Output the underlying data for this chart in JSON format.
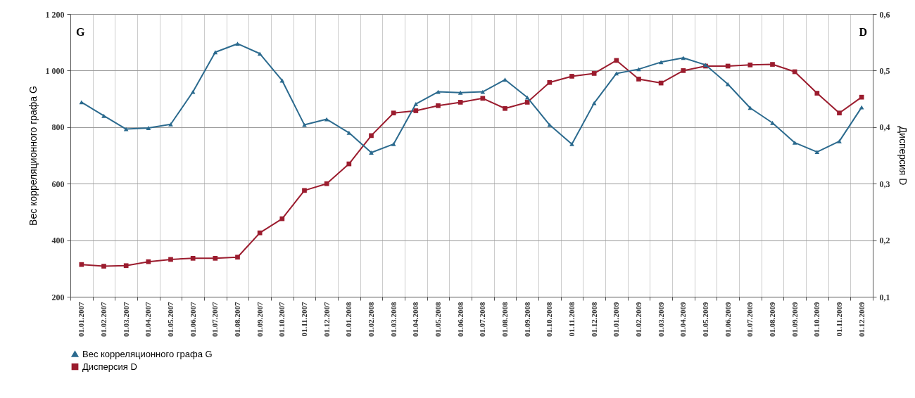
{
  "chart_data": {
    "type": "line",
    "categories": [
      "01.01.2007",
      "01.02.2007",
      "01.03.2007",
      "01.04.2007",
      "01.05.2007",
      "01.06.2007",
      "01.07.2007",
      "01.08.2007",
      "01.09.2007",
      "01.10.2007",
      "01.11.2007",
      "01.12.2007",
      "01.01.2008",
      "01.02.2008",
      "01.03.2008",
      "01.04.2008",
      "01.05.2008",
      "01.06.2008",
      "01.07.2008",
      "01.08.2008",
      "01.09.2008",
      "01.10.2008",
      "01.11.2008",
      "01.12.2008",
      "01.01.2009",
      "01.02.2009",
      "01.03.2009",
      "01.04.2009",
      "01.05.2009",
      "01.06.2009",
      "01.07.2009",
      "01.08.2009",
      "01.09.2009",
      "01.10.2009",
      "01.11.2009",
      "01.12.2009"
    ],
    "series": [
      {
        "name": "Вес корреляционного графа G",
        "color": "#2b6a8e",
        "marker": "triangle",
        "values": [
          888,
          840,
          793,
          797,
          810,
          925,
          1065,
          1095,
          1060,
          965,
          808,
          828,
          780,
          710,
          740,
          882,
          925,
          922,
          925,
          968,
          905,
          808,
          740,
          885,
          990,
          1005,
          1030,
          1045,
          1020,
          952,
          868,
          815,
          745,
          712,
          750,
          870
        ]
      },
      {
        "name": "Дисперсия D",
        "color": "#9b1c2e",
        "marker": "square",
        "axis": "y2",
        "values": [
          0.157,
          0.154,
          0.155,
          0.162,
          0.166,
          0.168,
          0.168,
          0.17,
          0.213,
          0.238,
          0.288,
          0.3,
          0.335,
          0.385,
          0.425,
          0.429,
          0.438,
          0.444,
          0.451,
          0.433,
          0.444,
          0.479,
          0.49,
          0.495,
          0.518,
          0.485,
          0.478,
          0.5,
          0.508,
          0.508,
          0.51,
          0.511,
          0.498,
          0.46,
          0.425,
          0.453
        ]
      }
    ],
    "ylabel": "Вес корреляционного графа G",
    "y2label": "Дисперсия D",
    "ylim": [
      200,
      1200
    ],
    "yticks": [
      200,
      400,
      600,
      800,
      {
        "value": 1000,
        "label": "1 000"
      },
      {
        "value": 1200,
        "label": "1 200"
      }
    ],
    "y2lim": [
      0.1,
      0.6
    ],
    "y2ticks": [
      {
        "value": 0.1,
        "label": "0,1"
      },
      {
        "value": 0.2,
        "label": "0,2"
      },
      {
        "value": 0.3,
        "label": "0,3"
      },
      {
        "value": 0.4,
        "label": "0,4"
      },
      {
        "value": 0.5,
        "label": "0,5"
      },
      {
        "value": 0.6,
        "label": "0,6"
      }
    ],
    "annotations": [
      "G",
      "D"
    ],
    "grid": true,
    "legend": "bottom",
    "line_style": "solid"
  }
}
